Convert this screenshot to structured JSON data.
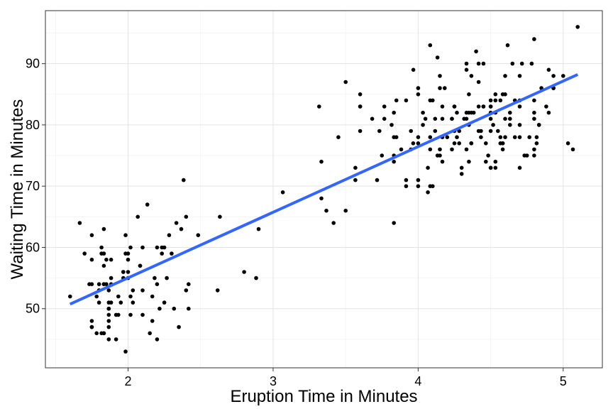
{
  "chart_data": {
    "type": "scatter",
    "title": "",
    "xlabel": "Eruption Time in Minutes",
    "ylabel": "Waiting Time in Minutes",
    "xlim": [
      1.43,
      5.27
    ],
    "ylim": [
      40.35,
      98.65
    ],
    "x_ticks": [
      2,
      3,
      4,
      5
    ],
    "y_ticks": [
      50,
      60,
      70,
      80,
      90
    ],
    "x_tick_labels": [
      "2",
      "3",
      "4",
      "5"
    ],
    "y_tick_labels": [
      "50",
      "60",
      "70",
      "80",
      "90"
    ],
    "grid": true,
    "legend": "none",
    "colors": {
      "points": "#000000",
      "fit_line": "#3366ff",
      "panel_border": "#333333",
      "grid": "#e3e3e3"
    },
    "series": [
      {
        "kind": "points",
        "x": [
          3.6,
          1.8,
          3.333,
          2.283,
          4.533,
          2.883,
          4.7,
          3.6,
          1.95,
          4.35,
          1.833,
          3.917,
          4.2,
          1.75,
          4.7,
          2.167,
          1.75,
          4.8,
          1.6,
          4.25,
          1.8,
          1.75,
          3.45,
          3.067,
          4.533,
          3.6,
          1.967,
          4.083,
          3.85,
          4.433,
          4.3,
          4.467,
          3.367,
          4.033,
          3.833,
          2.017,
          1.867,
          4.833,
          1.833,
          4.783,
          4.35,
          1.883,
          4.567,
          1.75,
          4.533,
          3.317,
          3.833,
          2.1,
          4.633,
          2,
          4.8,
          4.716,
          1.833,
          4.833,
          1.733,
          4.883,
          3.717,
          1.667,
          4.567,
          4.317,
          2.233,
          4.5,
          1.75,
          4.8,
          1.817,
          4.4,
          4.167,
          4.7,
          2.067,
          4.7,
          4.033,
          1.967,
          4.5,
          4,
          1.983,
          5.067,
          2.017,
          4.567,
          3.883,
          3.6,
          4.133,
          4.333,
          4.1,
          2.633,
          4.067,
          4.933,
          3.95,
          4.517,
          2.167,
          4,
          2.2,
          4.333,
          1.867,
          4.817,
          1.833,
          4.3,
          4.667,
          3.75,
          1.867,
          4.9,
          2.483,
          4.367,
          2.1,
          4.5,
          4.05,
          1.867,
          4.7,
          1.783,
          4.85,
          3.683,
          4.733,
          2.3,
          4.9,
          4.417,
          1.7,
          4.633,
          2.317,
          4.6,
          1.817,
          4.417,
          2.617,
          4.067,
          4.25,
          1.967,
          4.6,
          3.767,
          1.917,
          4.5,
          2.267,
          4.65,
          1.867,
          4.167,
          2.8,
          4.333,
          1.833,
          4.383,
          1.883,
          4.933,
          2.033,
          3.733,
          4.233,
          2.233,
          4.533,
          4.817,
          4.333,
          1.983,
          4.633,
          2.017,
          5.1,
          1.8,
          5.033,
          4,
          2.4,
          4.6,
          3.567,
          4,
          4.5,
          4.083,
          1.8,
          3.967,
          2.2,
          4.15,
          2,
          3.833,
          3.5,
          4.583,
          2.367,
          5,
          1.933,
          4.617,
          1.917,
          2.083,
          4.583,
          3.333,
          4.167,
          4.333,
          4.5,
          2.417,
          4,
          4.167,
          1.883,
          4.583,
          4.25,
          3.767,
          2.033,
          4.433,
          4.083,
          1.833,
          4.417,
          2.183,
          4.8,
          1.833,
          4.8,
          4.1,
          3.966,
          4.233,
          3.5,
          4.366,
          2.25,
          4.667,
          2.1,
          4.35,
          4.133,
          1.867,
          4.6,
          1.783,
          4.367,
          3.85,
          1.933,
          4.5,
          2.383,
          4.7,
          1.867,
          3.833,
          3.417,
          4.233,
          2.4,
          4.8,
          2,
          4.15,
          1.867,
          4.267,
          1.75,
          4.483,
          4,
          4.117,
          4.083,
          4.267,
          3.917,
          4.55,
          4.083,
          2.417,
          4.183,
          2.217,
          4.45,
          1.883,
          1.85,
          4.283,
          3.95,
          2.333,
          4.15,
          2.35,
          4.933,
          2.9,
          4.583,
          3.833,
          2.083,
          4.367,
          2.133,
          4.35,
          2.2,
          4.45,
          3.567,
          4.5,
          4.15,
          3.817,
          3.917,
          4.45,
          2,
          4.283,
          4.767,
          4.533,
          1.85,
          4.25,
          1.983,
          2.25,
          4.75,
          4.117,
          2.15,
          4.417,
          1.817,
          4.467
        ],
        "y": [
          79,
          54,
          74,
          62,
          85,
          55,
          88,
          85,
          51,
          85,
          54,
          84,
          78,
          47,
          83,
          52,
          62,
          84,
          52,
          79,
          51,
          47,
          78,
          69,
          74,
          83,
          55,
          76,
          78,
          79,
          73,
          77,
          66,
          80,
          74,
          52,
          48,
          80,
          59,
          90,
          80,
          58,
          84,
          58,
          73,
          83,
          64,
          53,
          82,
          59,
          75,
          90,
          54,
          80,
          54,
          83,
          71,
          64,
          77,
          81,
          59,
          84,
          48,
          82,
          60,
          92,
          78,
          78,
          65,
          73,
          82,
          56,
          79,
          71,
          62,
          76,
          60,
          78,
          76,
          83,
          75,
          82,
          70,
          65,
          73,
          88,
          76,
          80,
          48,
          86,
          60,
          90,
          50,
          78,
          63,
          72,
          84,
          75,
          51,
          82,
          62,
          88,
          49,
          83,
          81,
          47,
          84,
          52,
          86,
          81,
          75,
          59,
          89,
          79,
          59,
          81,
          50,
          85,
          59,
          87,
          53,
          69,
          77,
          56,
          88,
          81,
          45,
          82,
          55,
          90,
          45,
          83,
          56,
          89,
          46,
          82,
          51,
          86,
          53,
          79,
          81,
          60,
          82,
          77,
          76,
          59,
          80,
          49,
          96,
          53,
          77,
          77,
          65,
          81,
          71,
          70,
          81,
          93,
          53,
          89,
          45,
          86,
          58,
          78,
          66,
          76,
          63,
          88,
          52,
          93,
          49,
          57,
          77,
          68,
          81,
          81,
          73,
          50,
          85,
          74,
          55,
          77,
          83,
          83,
          51,
          78,
          84,
          46,
          83,
          55,
          81,
          57,
          76,
          84,
          77,
          81,
          87,
          77,
          51,
          78,
          60,
          82,
          91,
          53,
          78,
          46,
          77,
          84,
          49,
          83,
          71,
          80,
          49,
          75,
          64,
          76,
          53,
          94,
          55,
          76,
          50,
          82,
          54,
          75,
          78,
          79,
          78,
          78,
          70,
          79,
          70,
          54,
          86,
          50,
          90,
          54,
          54,
          77,
          79,
          64,
          75,
          47,
          86,
          63,
          85,
          82,
          57,
          82,
          67,
          74,
          54,
          83,
          73,
          73,
          88,
          80,
          71,
          83,
          56,
          79,
          78,
          84,
          58,
          83,
          43,
          60,
          75,
          81,
          46,
          90,
          46,
          74
        ]
      },
      {
        "kind": "fit_line",
        "x": [
          1.6,
          5.1
        ],
        "y": [
          50.75,
          88.23
        ]
      }
    ]
  }
}
